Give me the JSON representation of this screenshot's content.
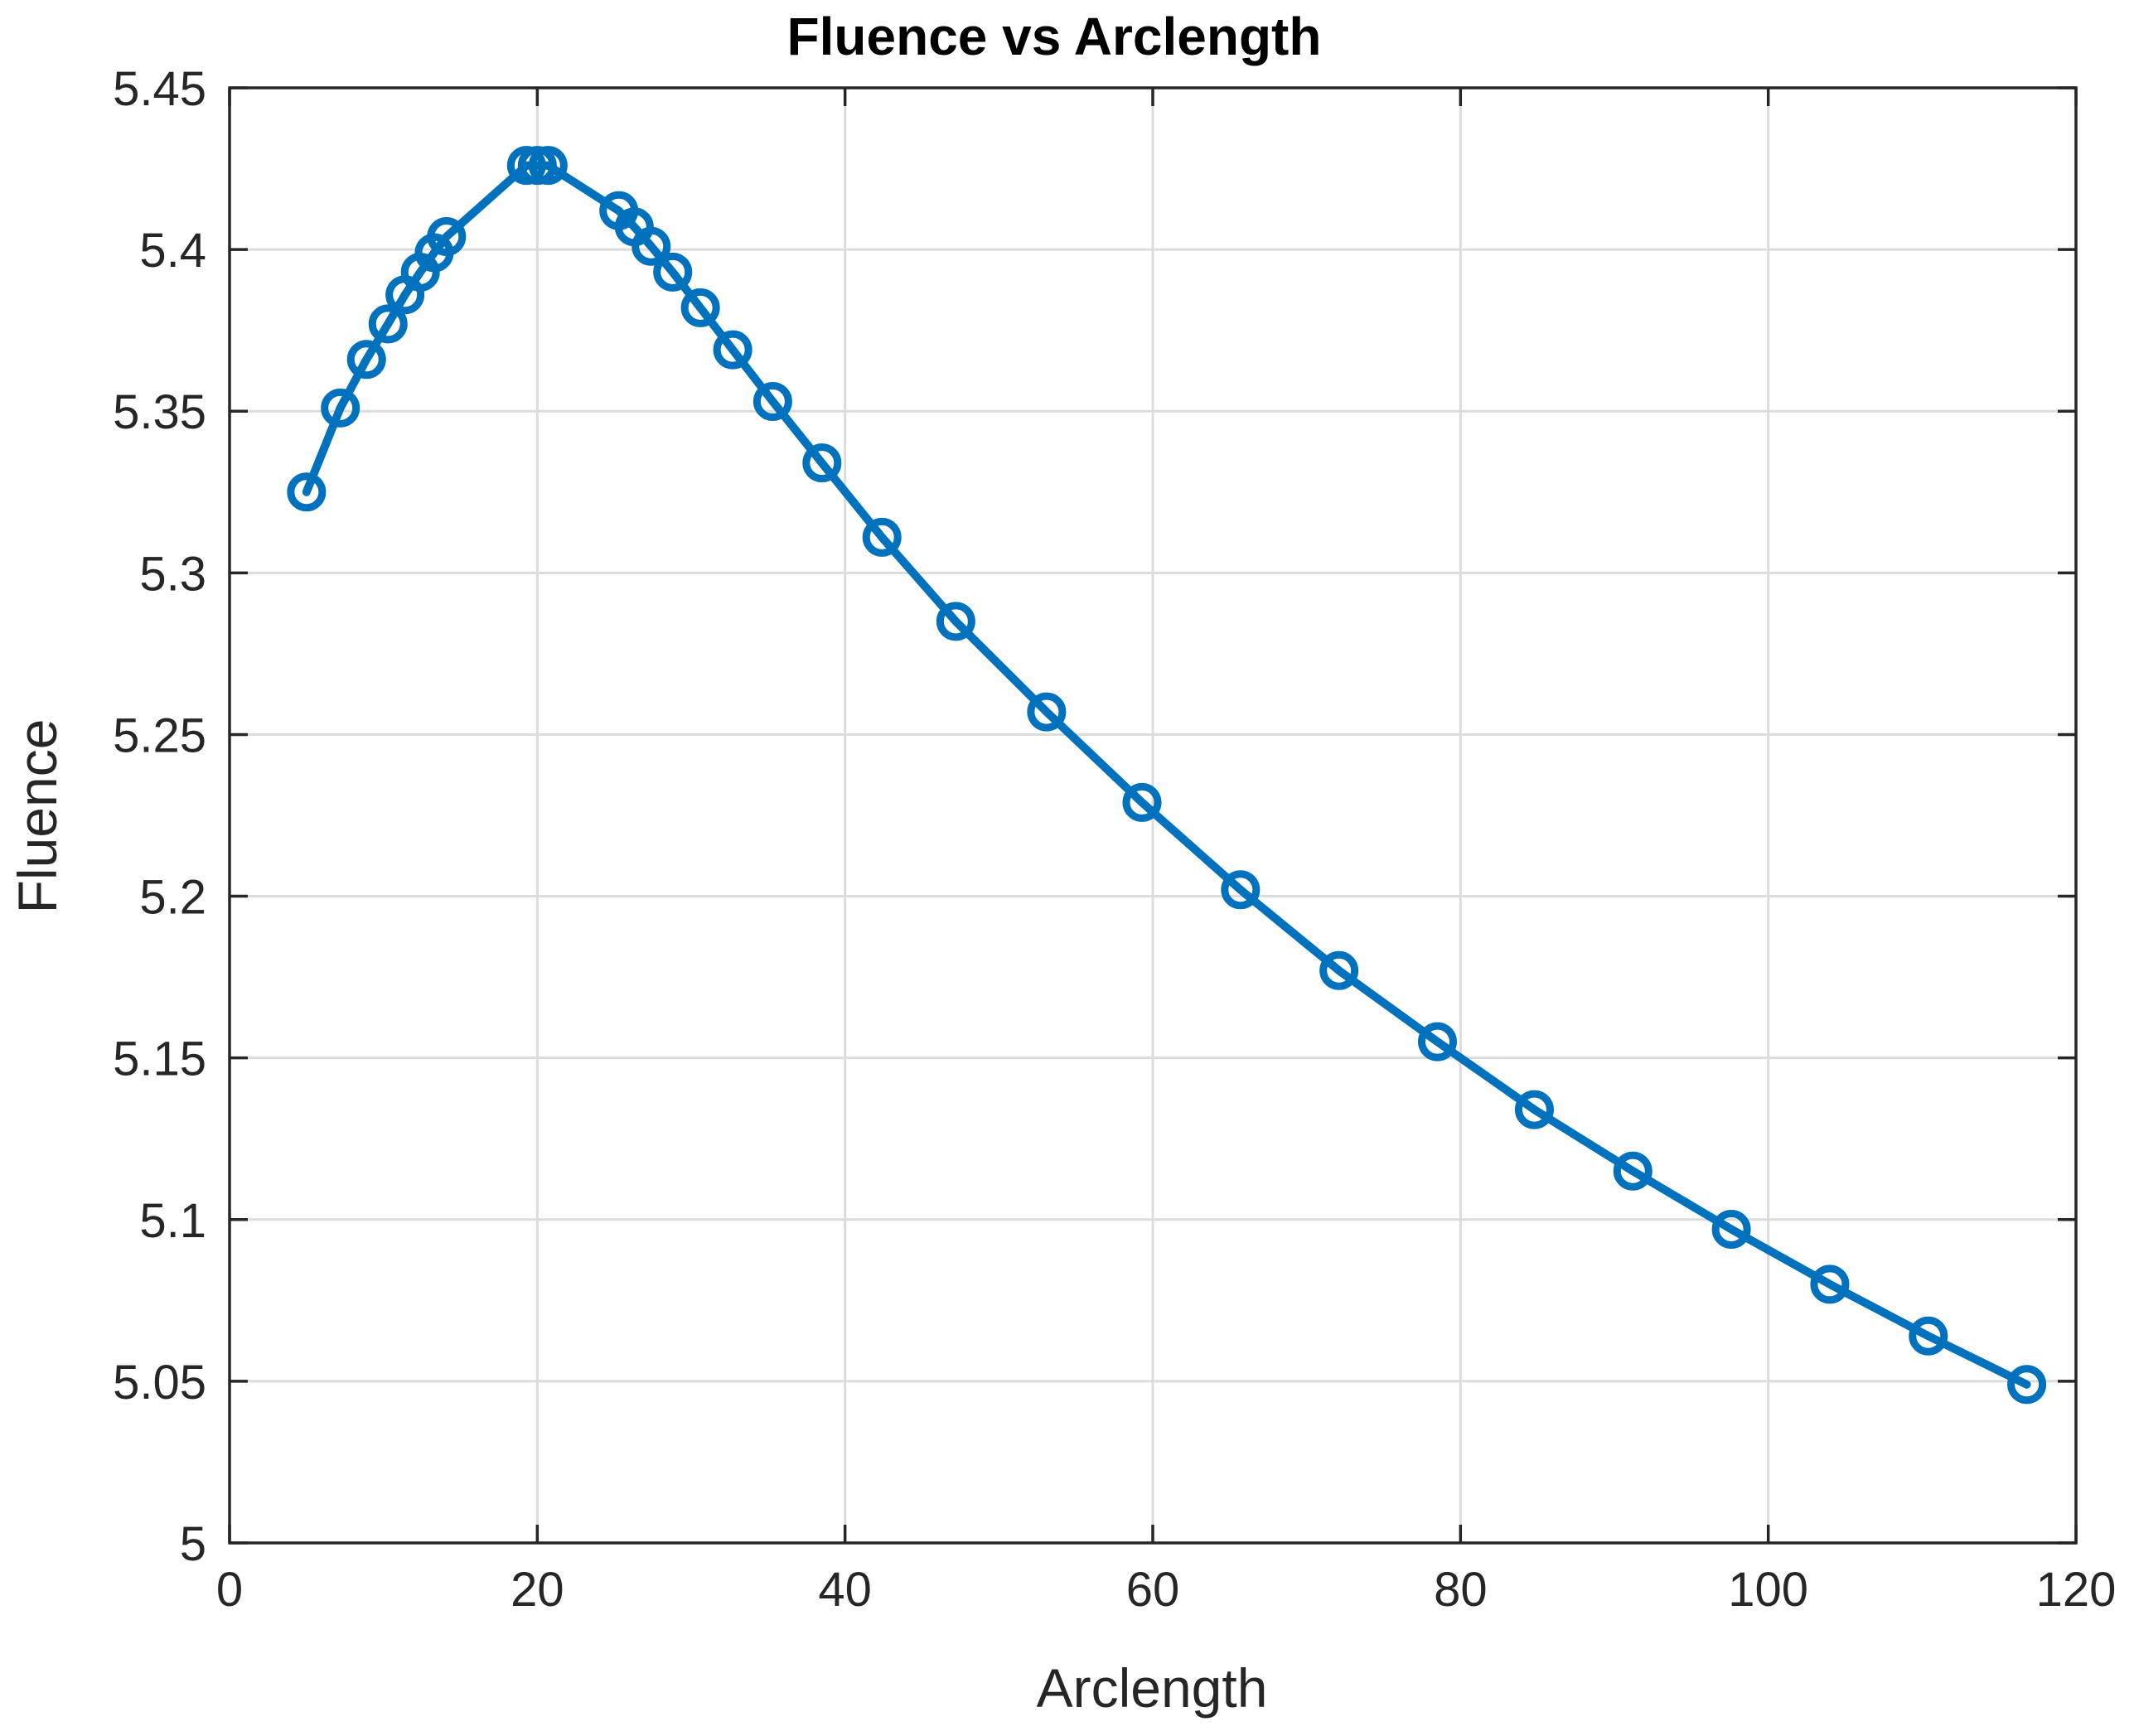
{
  "chart_data": {
    "type": "line",
    "title": "Fluence vs Arclength",
    "xlabel": "Arclength",
    "ylabel": "Fluence",
    "xlim": [
      0,
      120
    ],
    "ylim": [
      5,
      5.45
    ],
    "xticks": [
      0,
      20,
      40,
      60,
      80,
      100,
      120
    ],
    "yticks": [
      5,
      5.05,
      5.1,
      5.15,
      5.2,
      5.25,
      5.3,
      5.35,
      5.4,
      5.45
    ],
    "xtick_labels": [
      "0",
      "20",
      "40",
      "60",
      "80",
      "100",
      "120"
    ],
    "ytick_labels": [
      "5",
      "5.05",
      "5.1",
      "5.15",
      "5.2",
      "5.25",
      "5.3",
      "5.35",
      "5.4",
      "5.45"
    ],
    "grid": true,
    "marker": "circle",
    "colors": {
      "series": "#0072bd",
      "axes": "#262626",
      "grid": "#dcdcdc"
    },
    "series": [
      {
        "x": [
          5.0,
          7.2,
          8.9,
          10.3,
          11.4,
          12.4,
          13.3,
          14.1,
          19.3,
          20.0,
          20.7,
          25.3,
          26.3,
          27.4,
          28.8,
          30.6,
          32.7,
          35.3,
          38.5,
          42.4,
          47.2,
          53.1,
          59.3,
          65.7,
          72.1,
          78.5,
          84.8,
          91.2,
          97.6,
          104.0,
          110.4,
          116.8
        ],
        "y": [
          5.325,
          5.351,
          5.366,
          5.377,
          5.386,
          5.393,
          5.399,
          5.404,
          5.426,
          5.426,
          5.426,
          5.412,
          5.407,
          5.401,
          5.393,
          5.382,
          5.369,
          5.353,
          5.334,
          5.311,
          5.285,
          5.257,
          5.229,
          5.202,
          5.177,
          5.155,
          5.134,
          5.115,
          5.097,
          5.08,
          5.064,
          5.049
        ]
      }
    ]
  }
}
